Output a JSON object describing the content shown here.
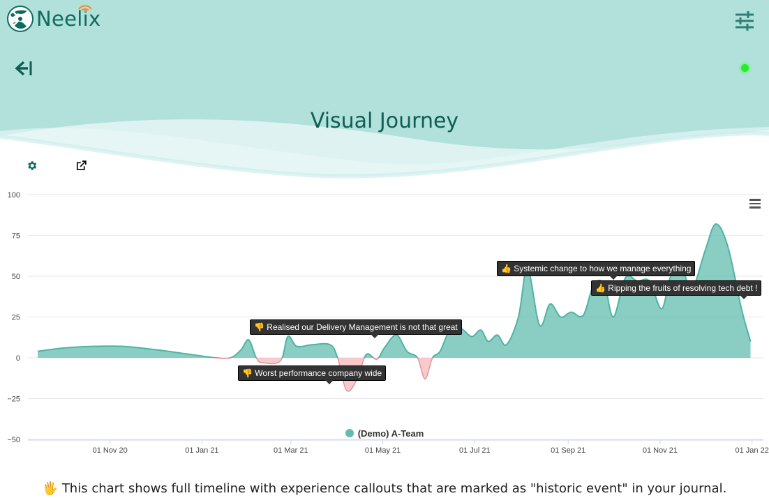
{
  "app": {
    "name": "Neelix"
  },
  "page": {
    "title": "Visual Journey"
  },
  "colors": {
    "header_bg": "#b2e1dc",
    "accent": "#0f6b5e",
    "area_positive": "#63bcad",
    "area_negative": "#f2a8ac",
    "status": "#22ee22"
  },
  "chart_data": {
    "type": "area",
    "series": [
      {
        "name": "(Demo) A-Team",
        "values": [
          [
            "2020-09-14",
            4
          ],
          [
            "2020-10-01",
            6
          ],
          [
            "2020-10-20",
            7
          ],
          [
            "2020-11-10",
            7
          ],
          [
            "2020-12-01",
            5
          ],
          [
            "2020-12-25",
            2
          ],
          [
            "2021-01-10",
            0
          ],
          [
            "2021-01-20",
            0
          ],
          [
            "2021-01-27",
            5
          ],
          [
            "2021-02-01",
            11
          ],
          [
            "2021-02-06",
            0
          ],
          [
            "2021-02-10",
            -3
          ],
          [
            "2021-02-22",
            -2
          ],
          [
            "2021-02-27",
            13
          ],
          [
            "2021-03-05",
            7
          ],
          [
            "2021-03-15",
            8
          ],
          [
            "2021-03-27",
            8
          ],
          [
            "2021-04-01",
            0
          ],
          [
            "2021-04-07",
            -20
          ],
          [
            "2021-04-14",
            -13
          ],
          [
            "2021-04-20",
            2
          ],
          [
            "2021-04-27",
            -1
          ],
          [
            "2021-05-02",
            6
          ],
          [
            "2021-05-10",
            14
          ],
          [
            "2021-05-17",
            4
          ],
          [
            "2021-05-24",
            0
          ],
          [
            "2021-05-29",
            -13
          ],
          [
            "2021-06-03",
            0
          ],
          [
            "2021-06-08",
            4
          ],
          [
            "2021-06-15",
            18
          ],
          [
            "2021-06-22",
            18
          ],
          [
            "2021-06-29",
            13
          ],
          [
            "2021-07-05",
            17
          ],
          [
            "2021-07-10",
            10
          ],
          [
            "2021-07-16",
            14
          ],
          [
            "2021-07-22",
            8
          ],
          [
            "2021-07-30",
            25
          ],
          [
            "2021-08-05",
            55
          ],
          [
            "2021-08-13",
            20
          ],
          [
            "2021-08-20",
            33
          ],
          [
            "2021-08-27",
            25
          ],
          [
            "2021-09-03",
            28
          ],
          [
            "2021-09-11",
            26
          ],
          [
            "2021-09-18",
            45
          ],
          [
            "2021-09-25",
            45
          ],
          [
            "2021-10-01",
            25
          ],
          [
            "2021-10-09",
            49
          ],
          [
            "2021-10-17",
            47
          ],
          [
            "2021-10-25",
            47
          ],
          [
            "2021-11-02",
            30
          ],
          [
            "2021-11-08",
            50
          ],
          [
            "2021-11-15",
            56
          ],
          [
            "2021-11-22",
            42
          ],
          [
            "2021-12-01",
            66
          ],
          [
            "2021-12-08",
            82
          ],
          [
            "2021-12-16",
            68
          ],
          [
            "2021-12-25",
            30
          ],
          [
            "2021-12-31",
            10
          ]
        ]
      }
    ],
    "xlabels": [
      "01 Nov 20",
      "01 Jan 21",
      "01 Mar 21",
      "01 May 21",
      "01 Jul 21",
      "01 Sep 21",
      "01 Nov 21",
      "01 Jan 22"
    ],
    "yticks": [
      100,
      75,
      50,
      25,
      0,
      -25,
      -50
    ],
    "ylim": [
      -50,
      100
    ],
    "xlim": [
      "2020-09-14",
      "2022-01-03"
    ],
    "annotations": [
      {
        "text": "Realised our Delivery Management is not that great",
        "icon": "thumbs-down",
        "date": "2021-05-02"
      },
      {
        "text": "Worst performance company wide",
        "icon": "thumbs-down",
        "date": "2021-04-07"
      },
      {
        "text": "Systemic change to how we manage everything",
        "icon": "thumbs-up",
        "date": "2021-09-25"
      },
      {
        "text": "Ripping the fruits of resolving tech debt !",
        "icon": "thumbs-up",
        "date": "2021-12-20"
      }
    ],
    "legend": {
      "position": "bottom",
      "label": "(Demo) A-Team"
    },
    "grid": true
  },
  "footer": {
    "text": "This chart shows full timeline with experience callouts that are marked as \"historic event\" in your journal."
  }
}
